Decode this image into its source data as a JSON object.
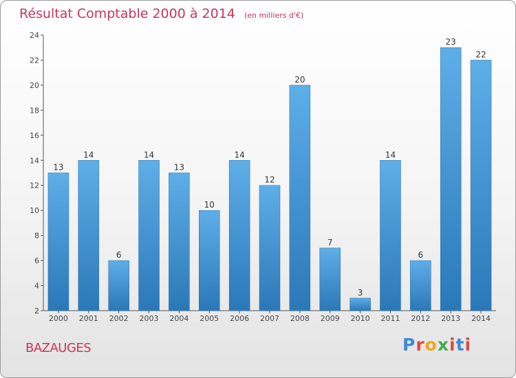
{
  "header": {
    "title": "Résultat Comptable 2000 à 2014",
    "subtitle": "(en milliers d'€)"
  },
  "location": "BAZAUGES",
  "brand": "Proxiti",
  "colors": {
    "bar_light": "#5dade6",
    "bar_dark": "#2a7dbb",
    "title": "#c8355a",
    "axis": "#555555"
  },
  "chart_data": {
    "type": "bar",
    "title": "Résultat Comptable 2000 à 2014",
    "unit": "en milliers d'€",
    "categories": [
      "2000",
      "2001",
      "2002",
      "2003",
      "2004",
      "2005",
      "2006",
      "2007",
      "2008",
      "2009",
      "2010",
      "2011",
      "2012",
      "2013",
      "2014"
    ],
    "values": [
      13,
      14,
      6,
      14,
      13,
      10,
      14,
      12,
      20,
      7,
      3,
      14,
      6,
      23,
      22
    ],
    "ylim": [
      2,
      24
    ],
    "yticks": [
      2,
      4,
      6,
      8,
      10,
      12,
      14,
      16,
      18,
      20,
      22,
      24
    ],
    "xlabel": "",
    "ylabel": "",
    "grid": false
  }
}
